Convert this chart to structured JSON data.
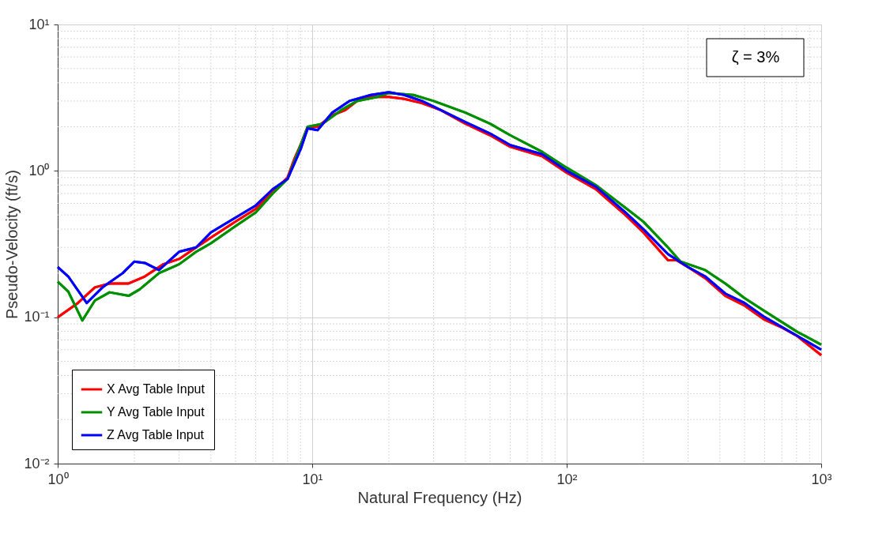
{
  "chart_data": {
    "type": "line",
    "xlabel": "Natural Frequency (Hz)",
    "ylabel": "Pseudo-Velocity (ft/s)",
    "log": "xy",
    "grid": true,
    "legend": "bottom left",
    "line_style": "solid",
    "marker": "none",
    "xlim": [
      1,
      1000
    ],
    "xticks": [
      {
        "value": 1,
        "label": "10⁰"
      },
      {
        "value": 10,
        "label": "10¹"
      },
      {
        "value": 100,
        "label": "10²"
      },
      {
        "value": 1000,
        "label": "10³"
      }
    ],
    "ylim": [
      0.01,
      10
    ],
    "yticks": [
      {
        "value": 0.01,
        "label": "10⁻²"
      },
      {
        "value": 0.1,
        "label": "10⁻¹"
      },
      {
        "value": 1,
        "label": "10⁰"
      },
      {
        "value": 10,
        "label": "10¹"
      }
    ],
    "annotations": [
      "ζ = 3%"
    ],
    "series": [
      {
        "name": "X Avg Table Input",
        "color": "#ff0000",
        "x": [
          1,
          1.2,
          1.4,
          1.6,
          1.9,
          2.2,
          2.6,
          3,
          3.5,
          4,
          5,
          6,
          7,
          8,
          8.5,
          9,
          9.6,
          10.5,
          12,
          13.5,
          15,
          17,
          20,
          23,
          27,
          32,
          40,
          50,
          60,
          80,
          100,
          130,
          170,
          200,
          250,
          270,
          300,
          350,
          420,
          500,
          600,
          700,
          800,
          1000
        ],
        "values": [
          0.1,
          0.125,
          0.16,
          0.17,
          0.17,
          0.19,
          0.23,
          0.25,
          0.3,
          0.35,
          0.45,
          0.55,
          0.72,
          0.9,
          1.2,
          1.5,
          2.0,
          2.0,
          2.4,
          2.6,
          3.0,
          3.2,
          3.2,
          3.1,
          2.9,
          2.6,
          2.1,
          1.75,
          1.46,
          1.26,
          0.97,
          0.75,
          0.5,
          0.38,
          0.245,
          0.245,
          0.22,
          0.185,
          0.14,
          0.12,
          0.096,
          0.085,
          0.075,
          0.055
        ]
      },
      {
        "name": "Y Avg Table Input",
        "color": "#008f00",
        "x": [
          1,
          1.1,
          1.25,
          1.4,
          1.6,
          1.9,
          2.1,
          2.5,
          3,
          3.5,
          4,
          5,
          6,
          7,
          8,
          9,
          9.6,
          11,
          13,
          15,
          18,
          20,
          25,
          30,
          40,
          50,
          60,
          80,
          100,
          130,
          170,
          200,
          250,
          280,
          350,
          420,
          500,
          600,
          800,
          1000
        ],
        "values": [
          0.175,
          0.15,
          0.095,
          0.13,
          0.148,
          0.14,
          0.155,
          0.2,
          0.23,
          0.28,
          0.32,
          0.42,
          0.52,
          0.7,
          0.88,
          1.5,
          2.0,
          2.1,
          2.6,
          3.0,
          3.2,
          3.4,
          3.3,
          3.0,
          2.5,
          2.1,
          1.75,
          1.35,
          1.05,
          0.8,
          0.56,
          0.45,
          0.3,
          0.24,
          0.21,
          0.17,
          0.135,
          0.11,
          0.08,
          0.065
        ]
      },
      {
        "name": "Z Avg Table Input",
        "color": "#0000ff",
        "x": [
          1,
          1.1,
          1.3,
          1.5,
          1.8,
          2,
          2.2,
          2.5,
          3,
          3.5,
          4,
          5,
          6,
          7,
          8,
          9,
          9.6,
          10.5,
          12,
          14,
          17,
          20,
          23,
          27,
          32,
          40,
          50,
          60,
          80,
          100,
          130,
          170,
          200,
          250,
          300,
          350,
          420,
          500,
          600,
          800,
          1000
        ],
        "values": [
          0.22,
          0.19,
          0.125,
          0.16,
          0.2,
          0.24,
          0.235,
          0.21,
          0.28,
          0.3,
          0.38,
          0.48,
          0.58,
          0.75,
          0.88,
          1.4,
          1.95,
          1.9,
          2.5,
          3.0,
          3.3,
          3.45,
          3.3,
          3.0,
          2.6,
          2.15,
          1.8,
          1.5,
          1.3,
          1.0,
          0.78,
          0.52,
          0.4,
          0.27,
          0.22,
          0.19,
          0.145,
          0.125,
          0.1,
          0.075,
          0.06
        ]
      }
    ]
  }
}
